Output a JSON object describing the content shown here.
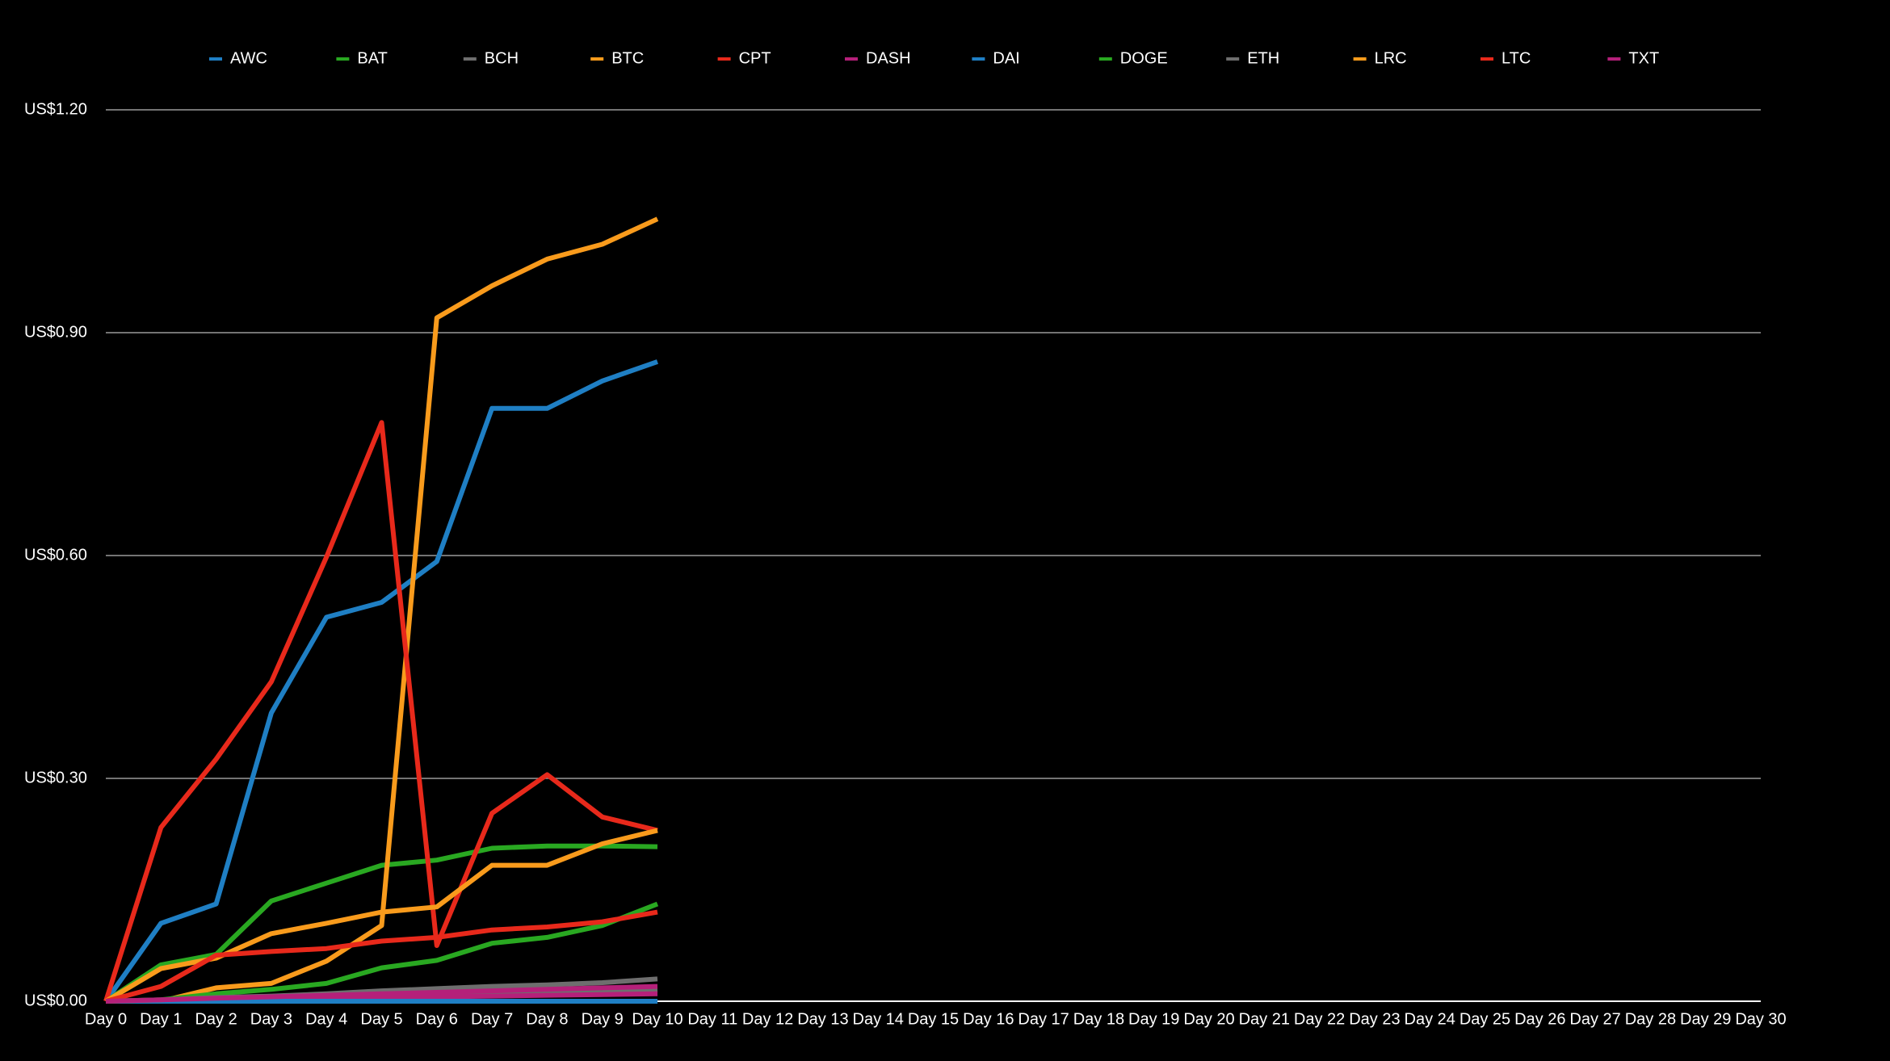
{
  "chart_data": {
    "type": "line",
    "categories": [
      "Day 0",
      "Day 1",
      "Day 2",
      "Day 3",
      "Day 4",
      "Day 5",
      "Day 6",
      "Day 7",
      "Day 8",
      "Day 9",
      "Day 10",
      "Day 11",
      "Day 12",
      "Day 13",
      "Day 14",
      "Day 15",
      "Day 16",
      "Day 17",
      "Day 18",
      "Day 19",
      "Day 20",
      "Day 21",
      "Day 22",
      "Day 23",
      "Day 24",
      "Day 25",
      "Day 26",
      "Day 27",
      "Day 28",
      "Day 29",
      "Day 30"
    ],
    "ylim": [
      0,
      1.2
    ],
    "yticks": [
      {
        "value": 0,
        "label": "US$0.00"
      },
      {
        "value": 0.3,
        "label": "US$0.30"
      },
      {
        "value": 0.6,
        "label": "US$0.60"
      },
      {
        "value": 0.9,
        "label": "US$0.90"
      },
      {
        "value": 1.2,
        "label": "US$1.20"
      }
    ],
    "grid": true,
    "legend": "top",
    "series": [
      {
        "name": "AWC",
        "color": "#1f7fc4",
        "values": [
          0,
          0.105,
          0.131,
          0.388,
          0.517,
          0.537,
          0.592,
          0.798,
          0.798,
          0.835,
          0.861,
          null,
          null,
          null,
          null,
          null,
          null,
          null,
          null,
          null,
          null,
          null,
          null,
          null,
          null,
          null,
          null,
          null,
          null,
          null,
          null
        ]
      },
      {
        "name": "BAT",
        "color": "#29a821",
        "values": [
          0,
          0.049,
          0.063,
          0.135,
          0.159,
          0.183,
          0.19,
          0.206,
          0.209,
          0.209,
          0.208,
          null,
          null,
          null,
          null,
          null,
          null,
          null,
          null,
          null,
          null,
          null,
          null,
          null,
          null,
          null,
          null,
          null,
          null,
          null,
          null
        ]
      },
      {
        "name": "BCH",
        "color": "#6e6e6e",
        "values": [
          0,
          0.001,
          0.002,
          0.003,
          0.005,
          0.006,
          0.008,
          0.009,
          0.011,
          0.012,
          0.015,
          null,
          null,
          null,
          null,
          null,
          null,
          null,
          null,
          null,
          null,
          null,
          null,
          null,
          null,
          null,
          null,
          null,
          null,
          null,
          null
        ]
      },
      {
        "name": "BTC",
        "color": "#f99b1c",
        "values": [
          0,
          0,
          0.018,
          0.024,
          0.054,
          0.102,
          0.92,
          0.963,
          0.999,
          1.019,
          1.053,
          null,
          null,
          null,
          null,
          null,
          null,
          null,
          null,
          null,
          null,
          null,
          null,
          null,
          null,
          null,
          null,
          null,
          null,
          null,
          null
        ]
      },
      {
        "name": "CPT",
        "color": "#e8291b",
        "values": [
          0,
          0.234,
          0.326,
          0.43,
          0.598,
          0.779,
          0.075,
          0.253,
          0.305,
          0.248,
          0.23,
          null,
          null,
          null,
          null,
          null,
          null,
          null,
          null,
          null,
          null,
          null,
          null,
          null,
          null,
          null,
          null,
          null,
          null,
          null,
          null
        ]
      },
      {
        "name": "DASH",
        "color": "#b5207a",
        "values": [
          0,
          0.001,
          0.002,
          0.003,
          0.004,
          0.005,
          0.006,
          0.007,
          0.008,
          0.009,
          0.01,
          null,
          null,
          null,
          null,
          null,
          null,
          null,
          null,
          null,
          null,
          null,
          null,
          null,
          null,
          null,
          null,
          null,
          null,
          null,
          null
        ]
      },
      {
        "name": "DAI",
        "color": "#1f7fc4",
        "values": [
          0,
          0,
          0,
          0,
          0,
          0,
          0,
          0,
          0,
          0,
          0,
          null,
          null,
          null,
          null,
          null,
          null,
          null,
          null,
          null,
          null,
          null,
          null,
          null,
          null,
          null,
          null,
          null,
          null,
          null,
          null
        ]
      },
      {
        "name": "DOGE",
        "color": "#29a821",
        "values": [
          0,
          0.002,
          0.01,
          0.016,
          0.024,
          0.045,
          0.055,
          0.078,
          0.086,
          0.102,
          0.131,
          null,
          null,
          null,
          null,
          null,
          null,
          null,
          null,
          null,
          null,
          null,
          null,
          null,
          null,
          null,
          null,
          null,
          null,
          null,
          null
        ]
      },
      {
        "name": "ETH",
        "color": "#6e6e6e",
        "values": [
          0,
          0.002,
          0.005,
          0.007,
          0.01,
          0.014,
          0.017,
          0.02,
          0.022,
          0.025,
          0.03,
          null,
          null,
          null,
          null,
          null,
          null,
          null,
          null,
          null,
          null,
          null,
          null,
          null,
          null,
          null,
          null,
          null,
          null,
          null,
          null
        ]
      },
      {
        "name": "LRC",
        "color": "#f99b1c",
        "values": [
          0,
          0.044,
          0.058,
          0.091,
          0.105,
          0.12,
          0.127,
          0.183,
          0.183,
          0.212,
          0.23,
          null,
          null,
          null,
          null,
          null,
          null,
          null,
          null,
          null,
          null,
          null,
          null,
          null,
          null,
          null,
          null,
          null,
          null,
          null,
          null
        ]
      },
      {
        "name": "LTC",
        "color": "#e8291b",
        "values": [
          0,
          0.02,
          0.062,
          0.067,
          0.071,
          0.081,
          0.086,
          0.096,
          0.1,
          0.107,
          0.12,
          null,
          null,
          null,
          null,
          null,
          null,
          null,
          null,
          null,
          null,
          null,
          null,
          null,
          null,
          null,
          null,
          null,
          null,
          null,
          null
        ]
      },
      {
        "name": "TXT",
        "color": "#b5207a",
        "values": [
          0,
          0.002,
          0.004,
          0.006,
          0.008,
          0.01,
          0.012,
          0.014,
          0.016,
          0.018,
          0.02,
          null,
          null,
          null,
          null,
          null,
          null,
          null,
          null,
          null,
          null,
          null,
          null,
          null,
          null,
          null,
          null,
          null,
          null,
          null,
          null
        ]
      }
    ]
  }
}
